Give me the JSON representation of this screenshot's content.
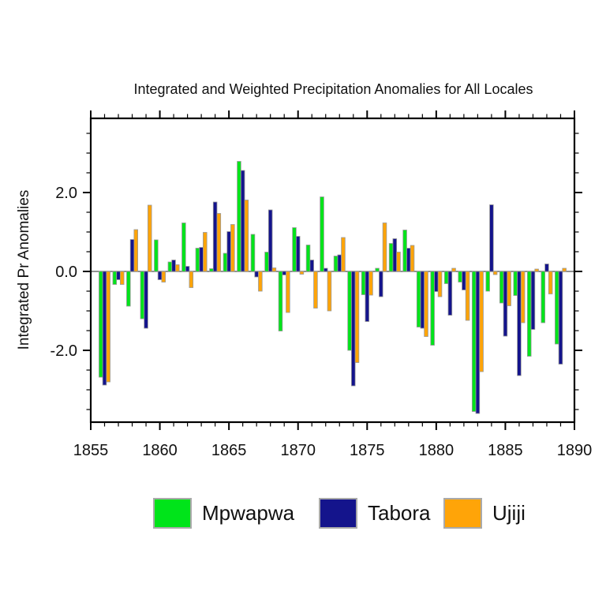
{
  "title": "Integrated and Weighted Precipitation Anomalies for All Locales",
  "colors": {
    "mpwapwa_green": "#00E41A",
    "tabora_navy": "#14148C",
    "ujiji_orange": "#FFA408",
    "bar_outline": "#999999",
    "axis_black": "#000000",
    "zero_line_grey": "#6e6e6e",
    "legend_swatch_border": "#aaaaaa"
  },
  "chart_data": {
    "type": "bar",
    "title": "Integrated and Weighted Precipitation Anomalies for All Locales",
    "xlabel": "",
    "ylabel": "Integrated Pr Anomalies",
    "xlim": [
      1855,
      1890
    ],
    "ylim": [
      -3.85,
      3.85
    ],
    "x_ticks_major": [
      1855,
      1860,
      1865,
      1870,
      1875,
      1880,
      1885,
      1890
    ],
    "x_minor_tick_step_years": 1,
    "y_ticks_major": [
      2.0,
      0.0,
      -2.0
    ],
    "y_tick_labels": [
      "2.0",
      "0.0",
      "-2.0"
    ],
    "y_minor_tick_step": 0.5,
    "grid": false,
    "legend_position": "bottom",
    "categories": [
      1856,
      1857,
      1858,
      1859,
      1860,
      1861,
      1862,
      1863,
      1864,
      1865,
      1866,
      1867,
      1868,
      1869,
      1870,
      1871,
      1872,
      1873,
      1874,
      1875,
      1876,
      1877,
      1878,
      1879,
      1880,
      1881,
      1882,
      1883,
      1884,
      1885,
      1886,
      1887,
      1888,
      1889
    ],
    "series": [
      {
        "name": "Mpwapwa",
        "color": "#00E41A",
        "values": [
          -2.68,
          -0.33,
          -0.88,
          -1.2,
          0.8,
          0.24,
          1.23,
          0.59,
          0.07,
          0.46,
          2.79,
          0.94,
          0.49,
          -1.51,
          1.11,
          0.67,
          1.89,
          0.39,
          -2.0,
          -0.59,
          0.08,
          0.71,
          1.05,
          -1.41,
          -1.87,
          -0.31,
          -0.27,
          -3.55,
          -0.5,
          -0.8,
          -0.61,
          -2.15,
          -1.3,
          -1.84
        ]
      },
      {
        "name": "Tabora",
        "color": "#14148C",
        "values": [
          -2.88,
          -0.21,
          0.81,
          -1.44,
          -0.21,
          0.29,
          0.13,
          0.61,
          1.76,
          1.01,
          2.56,
          -0.14,
          1.56,
          -0.09,
          0.89,
          0.29,
          0.08,
          0.42,
          -2.9,
          -1.27,
          -0.64,
          0.83,
          0.59,
          -1.44,
          -0.51,
          -1.11,
          -0.47,
          -3.6,
          1.69,
          -1.64,
          -2.64,
          -1.47,
          0.19,
          -2.35
        ]
      },
      {
        "name": "Ujiji",
        "color": "#FFA408",
        "values": [
          -2.8,
          -0.33,
          1.06,
          1.68,
          -0.27,
          0.17,
          -0.41,
          0.99,
          1.47,
          1.19,
          1.81,
          -0.5,
          0.09,
          -1.04,
          -0.07,
          -0.93,
          -1.0,
          0.86,
          -2.31,
          -0.6,
          1.23,
          0.49,
          0.66,
          -1.65,
          -0.64,
          0.08,
          -1.24,
          -2.54,
          -0.08,
          -0.87,
          -1.3,
          0.06,
          -0.57,
          0.08
        ]
      }
    ]
  }
}
